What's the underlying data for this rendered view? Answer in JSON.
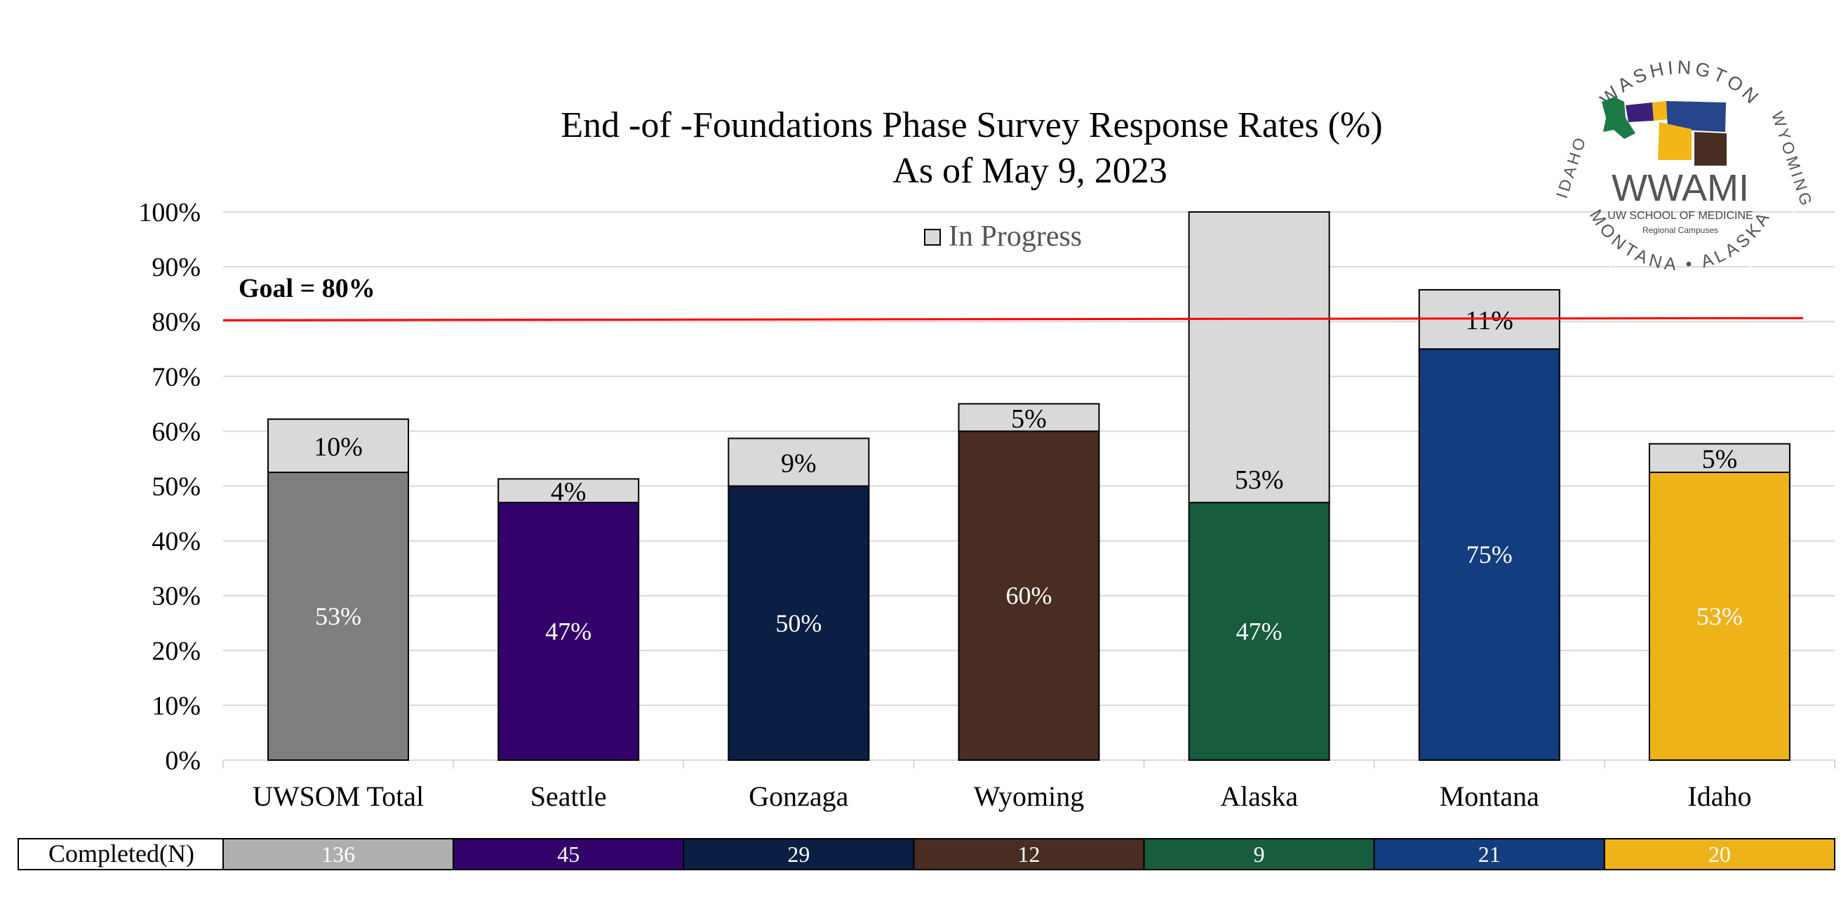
{
  "chart_data": {
    "type": "bar",
    "stacked": true,
    "title": "End -of -Foundations Phase Survey Response Rates (%)",
    "subtitle": "As of May 9, 2023",
    "categories": [
      "UWSOM Total",
      "Seattle",
      "Gonzaga",
      "Wyoming",
      "Alaska",
      "Montana",
      "Idaho"
    ],
    "series": [
      {
        "values": [
          52.5,
          47,
          50,
          60,
          47,
          75,
          52.5
        ],
        "labels": [
          "53%",
          "47%",
          "50%",
          "60%",
          "47%",
          "75%",
          "53%"
        ],
        "colors": [
          "#7f7f7f",
          "#32026a",
          "#0b1f45",
          "#4a2d22",
          "#175c3d",
          "#123e7f",
          "#efb31a"
        ]
      },
      {
        "name": "In Progress",
        "values": [
          9.7,
          4.3,
          8.7,
          5,
          53,
          10.8,
          5.2
        ],
        "labels": [
          "10%",
          "4%",
          "9%",
          "5%",
          "53%",
          "11%",
          "5%"
        ],
        "color": "#d9d9d9"
      }
    ],
    "ylim": [
      0,
      100
    ],
    "yticks": [
      "0%",
      "10%",
      "20%",
      "30%",
      "40%",
      "50%",
      "60%",
      "70%",
      "80%",
      "90%",
      "100%"
    ],
    "grid": true,
    "legend": "top-center",
    "goal": {
      "value": 80,
      "label": "Goal = 80%",
      "color": "#ff0000"
    },
    "table": {
      "row_label": "Completed(N)",
      "values": [
        "136",
        "45",
        "29",
        "12",
        "9",
        "21",
        "20"
      ],
      "colors": [
        "#afafaf",
        "#32026a",
        "#0b1f45",
        "#4a2d22",
        "#175c3d",
        "#123e7f",
        "#efb31a"
      ]
    }
  },
  "logo": {
    "top_text": "WASHINGTON",
    "right_text": "WYOMING",
    "bottom_text": "MONTANA • ALASKA",
    "left_text": "IDAHO",
    "name": "WWAMI",
    "subtitle": "UW SCHOOL OF MEDICINE",
    "tagline": "Regional Campuses"
  }
}
